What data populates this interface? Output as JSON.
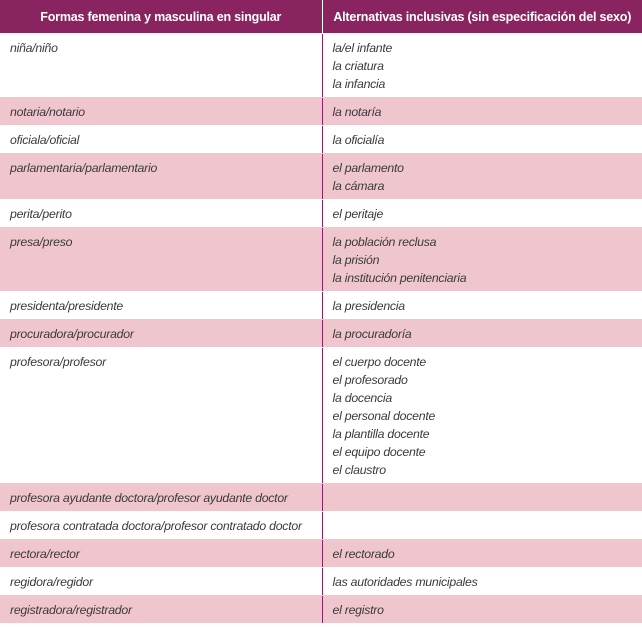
{
  "table": {
    "headers": [
      "Formas femenina y masculina en singular",
      "Alternativas inclusivas (sin especificación del sexo)"
    ],
    "colors": {
      "header": "#8a2461",
      "stripe": "#f0c6ce"
    },
    "rows": [
      {
        "form": "niña/niño",
        "alternatives": [
          "la/el infante",
          "la criatura",
          "la infancia"
        ]
      },
      {
        "form": "notaria/notario",
        "alternatives": [
          "la notaría"
        ]
      },
      {
        "form": "oficiala/oficial",
        "alternatives": [
          "la oficialía"
        ]
      },
      {
        "form": "parlamentaria/parlamentario",
        "alternatives": [
          "el parlamento",
          "la cámara"
        ]
      },
      {
        "form": "perita/perito",
        "alternatives": [
          "el peritaje"
        ]
      },
      {
        "form": "presa/preso",
        "alternatives": [
          "la población reclusa",
          "la prisión",
          "la institución penitenciaria"
        ]
      },
      {
        "form": "presidenta/presidente",
        "alternatives": [
          "la presidencia"
        ]
      },
      {
        "form": "procuradora/procurador",
        "alternatives": [
          "la procuradoría"
        ]
      },
      {
        "form": "profesora/profesor",
        "alternatives": [
          "el cuerpo docente",
          "el profesorado",
          "la docencia",
          "el personal docente",
          "la plantilla docente",
          "el equipo docente",
          "el claustro"
        ]
      },
      {
        "form": "profesora ayudante doctora/profesor ayudante doctor",
        "alternatives": []
      },
      {
        "form": "profesora contratada doctora/profesor contratado doctor",
        "alternatives": []
      },
      {
        "form": "rectora/rector",
        "alternatives": [
          "el rectorado"
        ]
      },
      {
        "form": "regidora/regidor",
        "alternatives": [
          "las autoridades municipales"
        ]
      },
      {
        "form": "registradora/registrador",
        "alternatives": [
          "el registro"
        ]
      }
    ]
  }
}
